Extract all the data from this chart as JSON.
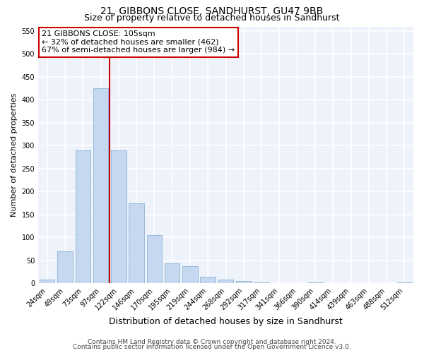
{
  "title": "21, GIBBONS CLOSE, SANDHURST, GU47 9BB",
  "subtitle": "Size of property relative to detached houses in Sandhurst",
  "xlabel": "Distribution of detached houses by size in Sandhurst",
  "ylabel": "Number of detached properties",
  "categories": [
    "24sqm",
    "49sqm",
    "73sqm",
    "97sqm",
    "122sqm",
    "146sqm",
    "170sqm",
    "195sqm",
    "219sqm",
    "244sqm",
    "268sqm",
    "292sqm",
    "317sqm",
    "341sqm",
    "366sqm",
    "390sqm",
    "414sqm",
    "439sqm",
    "463sqm",
    "488sqm",
    "512sqm"
  ],
  "values": [
    8,
    70,
    290,
    425,
    290,
    175,
    105,
    43,
    38,
    15,
    8,
    5,
    2,
    1,
    0,
    2,
    0,
    0,
    0,
    0,
    2
  ],
  "bar_color": "#c5d8f0",
  "bar_edge_color": "#8ab4d8",
  "vline_color": "#cc0000",
  "vline_x_index": 3.5,
  "annotation_text": "21 GIBBONS CLOSE: 105sqm\n← 32% of detached houses are smaller (462)\n67% of semi-detached houses are larger (984) →",
  "annotation_box_color": "#ffffff",
  "annotation_box_edge_color": "#cc0000",
  "ylim": [
    0,
    560
  ],
  "yticks": [
    0,
    50,
    100,
    150,
    200,
    250,
    300,
    350,
    400,
    450,
    500,
    550
  ],
  "footer_line1": "Contains HM Land Registry data © Crown copyright and database right 2024.",
  "footer_line2": "Contains public sector information licensed under the Open Government Licence v3.0.",
  "bg_color": "#eef2fb",
  "grid_color": "#ffffff",
  "title_fontsize": 10,
  "subtitle_fontsize": 9,
  "ylabel_fontsize": 8,
  "xlabel_fontsize": 9,
  "tick_fontsize": 7,
  "annotation_fontsize": 8,
  "footer_fontsize": 6.5
}
